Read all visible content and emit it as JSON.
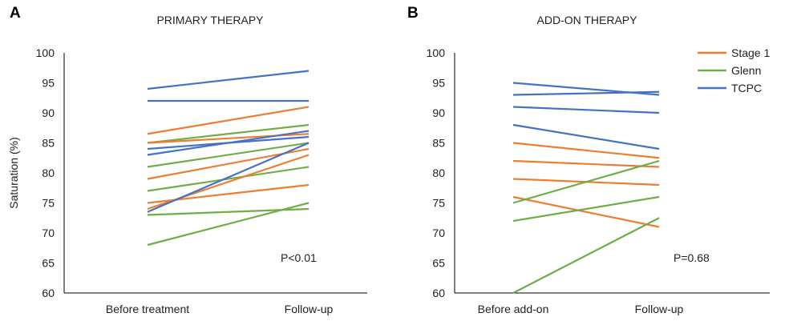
{
  "figure": {
    "colors": {
      "stage1": "#ED7D31",
      "glenn": "#70AD47",
      "tcpc": "#4472C4",
      "axis": "#000000",
      "text": "#222222"
    }
  },
  "chart_data": [
    {
      "type": "line",
      "panel_label": "A",
      "title": "PRIMARY THERAPY",
      "ylabel": "Saturation (%)",
      "xlabel": "",
      "categories": [
        "Before treatment",
        "Follow-up"
      ],
      "ylim": [
        60,
        100
      ],
      "yticks": [
        60,
        65,
        70,
        75,
        80,
        85,
        90,
        95,
        100
      ],
      "grid": false,
      "annotation": "P<0.01",
      "legend": null,
      "series": [
        {
          "group": "tcpc",
          "values": [
            94,
            97
          ]
        },
        {
          "group": "tcpc",
          "values": [
            92,
            92
          ]
        },
        {
          "group": "stage1",
          "values": [
            86.5,
            91
          ]
        },
        {
          "group": "glenn",
          "values": [
            85,
            88
          ]
        },
        {
          "group": "stage1",
          "values": [
            85,
            86.5
          ]
        },
        {
          "group": "tcpc",
          "values": [
            84,
            86
          ]
        },
        {
          "group": "tcpc",
          "values": [
            83,
            87
          ]
        },
        {
          "group": "glenn",
          "values": [
            81,
            85
          ]
        },
        {
          "group": "stage1",
          "values": [
            79,
            84
          ]
        },
        {
          "group": "glenn",
          "values": [
            77,
            81
          ]
        },
        {
          "group": "stage1",
          "values": [
            75,
            78
          ]
        },
        {
          "group": "stage1",
          "values": [
            74,
            83
          ]
        },
        {
          "group": "tcpc",
          "values": [
            73.5,
            85
          ]
        },
        {
          "group": "glenn",
          "values": [
            73,
            74
          ]
        },
        {
          "group": "glenn",
          "values": [
            68,
            75
          ]
        }
      ]
    },
    {
      "type": "line",
      "panel_label": "B",
      "title": "ADD-ON THERAPY",
      "ylabel": "",
      "xlabel": "",
      "categories": [
        "Before add-on",
        "Follow-up"
      ],
      "ylim": [
        60,
        100
      ],
      "yticks": [
        60,
        65,
        70,
        75,
        80,
        85,
        90,
        95,
        100
      ],
      "grid": false,
      "annotation": "P=0.68",
      "legend": {
        "position": "top-right",
        "entries": [
          {
            "label": "Stage 1",
            "group": "stage1"
          },
          {
            "label": "Glenn",
            "group": "glenn"
          },
          {
            "label": "TCPC",
            "group": "tcpc"
          }
        ]
      },
      "series": [
        {
          "group": "tcpc",
          "values": [
            95,
            93
          ]
        },
        {
          "group": "tcpc",
          "values": [
            93,
            93.5
          ]
        },
        {
          "group": "tcpc",
          "values": [
            91,
            90
          ]
        },
        {
          "group": "tcpc",
          "values": [
            88,
            84
          ]
        },
        {
          "group": "stage1",
          "values": [
            85,
            82.5
          ]
        },
        {
          "group": "stage1",
          "values": [
            82,
            81
          ]
        },
        {
          "group": "stage1",
          "values": [
            79,
            78
          ]
        },
        {
          "group": "stage1",
          "values": [
            76,
            71
          ]
        },
        {
          "group": "glenn",
          "values": [
            75,
            82
          ]
        },
        {
          "group": "glenn",
          "values": [
            72,
            76
          ]
        },
        {
          "group": "glenn",
          "values": [
            60,
            72.5
          ]
        }
      ]
    }
  ]
}
